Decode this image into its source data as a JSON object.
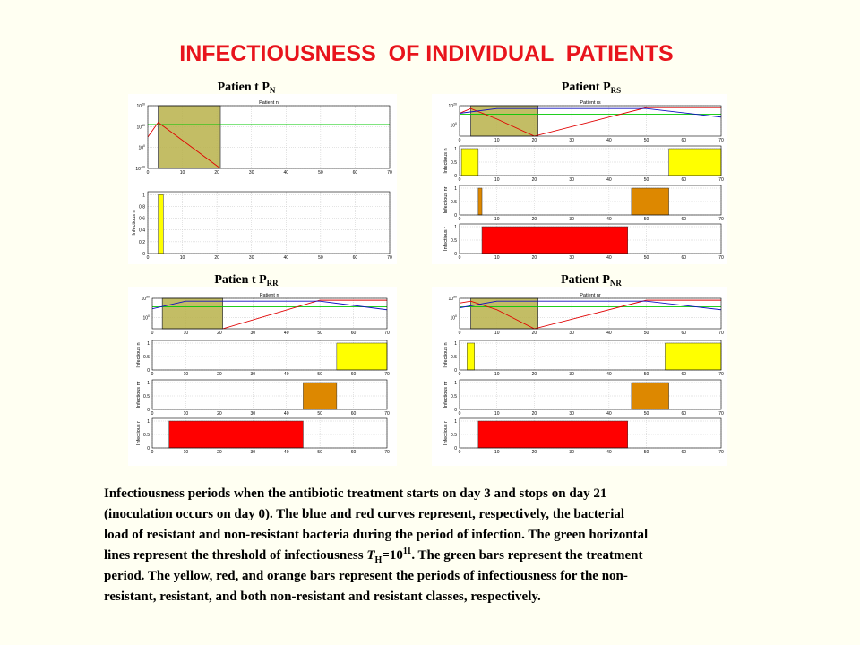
{
  "title": "INFECTIOUSNESS  OF INDIVIDUAL  PATIENTS",
  "caption": {
    "lines": [
      "Infectiousness periods when the antibiotic treatment starts on day 3 and stops on day 21",
      "(inoculation occurs on day 0). The blue and red curves represent, respectively, the bacterial",
      "load of resistant and non-resistant bacteria during the period of infection. The green horizontal"
    ],
    "formula_line": {
      "before": "lines represent the threshold of infectiousness ",
      "symbol": "T",
      "sub": "H",
      "eq": "=10",
      "sup": "11",
      "after": ". The green bars represent the treatment"
    },
    "end_lines": [
      "period. The yellow, red, and orange bars represent the periods of infectiousness for the non-",
      "resistant, resistant, and both non-resistant and resistant classes, respectively."
    ]
  },
  "chart_data": [
    {
      "type": "panel",
      "label": "Patien t P",
      "label_sub": "N",
      "plots": [
        {
          "type": "line",
          "title": "Patient n",
          "log_y": true,
          "grid": true,
          "xlim": [
            0,
            70
          ],
          "xticks": [
            0,
            10,
            20,
            30,
            40,
            50,
            60,
            70
          ],
          "ylim": [
            1e-10,
            1e+20
          ],
          "yticks": [
            {
              "value": 1e-10,
              "label": "10",
              "sup": "-10"
            },
            {
              "value": 1,
              "label": "10",
              "sup": "0"
            },
            {
              "value": 10000000000.0,
              "label": "10",
              "sup": "10"
            },
            {
              "value": 1e+20,
              "label": "10",
              "sup": "20"
            }
          ],
          "treatment": [
            3,
            21
          ],
          "treatment_color": "#b8b24a",
          "threshold": 100000000000.0,
          "threshold_color": "#00c800",
          "series": [
            {
              "color": "#e00000",
              "x": [
                0,
                3,
                21
              ],
              "values": [
                100000.0,
                1000000000000.0,
                1e-10
              ]
            }
          ]
        },
        {
          "type": "interval",
          "ylabel": "Infectious n",
          "grid": true,
          "xlim": [
            0,
            70
          ],
          "xticks": [
            0,
            10,
            20,
            30,
            40,
            50,
            60,
            70
          ],
          "ylim": [
            0,
            1.05
          ],
          "yticks": [
            0,
            0.2,
            0.4,
            0.6,
            0.8,
            1
          ],
          "color": "#ffff00",
          "intervals": [
            [
              3,
              4.5
            ]
          ],
          "values": [
            1
          ]
        }
      ]
    },
    {
      "type": "panel",
      "label": "Patient P",
      "label_sub": "RS",
      "plots": [
        {
          "type": "line",
          "title": "Patient rs",
          "log_y": true,
          "grid": true,
          "xlim": [
            0,
            70
          ],
          "xticks": [
            0,
            10,
            20,
            30,
            40,
            50,
            60,
            70
          ],
          "ylim": [
            1e-12,
            1e+20
          ],
          "yticks": [
            {
              "value": 1,
              "label": "10",
              "sup": "0"
            },
            {
              "value": 1e+20,
              "label": "10",
              "sup": "20"
            }
          ],
          "treatment": [
            3,
            21
          ],
          "treatment_color": "#b8b24a",
          "threshold": 100000000000.0,
          "threshold_color": "#00c800",
          "series": [
            {
              "color": "#e00000",
              "x": [
                0,
                3,
                10,
                20,
                50,
                70
              ],
              "values": [
                1000000000000.0,
                1e+17,
                1000000.0,
                1e-12,
                1e+18,
                1e+18
              ]
            },
            {
              "color": "#1010c0",
              "x": [
                0,
                10,
                50,
                70
              ],
              "values": [
                1000000000000.0,
                1e+17,
                1e+17,
                100000000.0
              ]
            }
          ]
        },
        {
          "type": "interval",
          "ylabel": "Infectious n",
          "grid": true,
          "xlim": [
            0,
            70
          ],
          "xticks": [
            0,
            10,
            20,
            30,
            40,
            50,
            60,
            70
          ],
          "ylim": [
            0,
            1.1
          ],
          "yticks": [
            0,
            0.5,
            1
          ],
          "color": "#ffff00",
          "intervals": [
            [
              0.5,
              5
            ],
            [
              56,
              70
            ]
          ],
          "values": [
            1,
            1
          ]
        },
        {
          "type": "interval",
          "ylabel": "Infectious nr",
          "grid": true,
          "xlim": [
            0,
            70
          ],
          "xticks": [
            0,
            10,
            20,
            30,
            40,
            50,
            60,
            70
          ],
          "ylim": [
            0,
            1.1
          ],
          "yticks": [
            0,
            0.5,
            1
          ],
          "color": "#dd8800",
          "intervals": [
            [
              5,
              6
            ],
            [
              46,
              56
            ]
          ],
          "values": [
            1,
            1
          ]
        },
        {
          "type": "interval",
          "ylabel": "Infectious r",
          "grid": true,
          "xlim": [
            0,
            70
          ],
          "xticks": [
            0,
            10,
            20,
            30,
            40,
            50,
            60,
            70
          ],
          "ylim": [
            0,
            1.1
          ],
          "yticks": [
            0,
            0.5,
            1
          ],
          "color": "#ff0000",
          "intervals": [
            [
              6,
              45
            ]
          ],
          "values": [
            1
          ]
        }
      ]
    },
    {
      "type": "panel",
      "label": "Patien t P",
      "label_sub": "RR",
      "plots": [
        {
          "type": "line",
          "title": "Patient rr",
          "log_y": true,
          "grid": true,
          "xlim": [
            0,
            70
          ],
          "xticks": [
            0,
            10,
            20,
            30,
            40,
            50,
            60,
            70
          ],
          "ylim": [
            1e-12,
            1e+20
          ],
          "yticks": [
            {
              "value": 1,
              "label": "10",
              "sup": "0"
            },
            {
              "value": 1e+20,
              "label": "10",
              "sup": "20"
            }
          ],
          "treatment": [
            3,
            21
          ],
          "treatment_color": "#b8b24a",
          "threshold": 100000000000.0,
          "threshold_color": "#00c800",
          "series": [
            {
              "color": "#e00000",
              "x": [
                21,
                50,
                70
              ],
              "values": [
                1e-12,
                1e+18,
                1e+18
              ]
            },
            {
              "color": "#1010c0",
              "x": [
                0,
                10,
                50,
                70
              ],
              "values": [
                1000000000.0,
                1e+17,
                1e+17,
                100000000.0
              ]
            }
          ]
        },
        {
          "type": "interval",
          "ylabel": "Infectious n",
          "grid": true,
          "xlim": [
            0,
            70
          ],
          "xticks": [
            0,
            10,
            20,
            30,
            40,
            50,
            60,
            70
          ],
          "ylim": [
            0,
            1.1
          ],
          "yticks": [
            0,
            0.5,
            1
          ],
          "color": "#ffff00",
          "intervals": [
            [
              55,
              70
            ]
          ],
          "values": [
            1
          ]
        },
        {
          "type": "interval",
          "ylabel": "Infectious nr",
          "grid": true,
          "xlim": [
            0,
            70
          ],
          "xticks": [
            0,
            10,
            20,
            30,
            40,
            50,
            60,
            70
          ],
          "ylim": [
            0,
            1.1
          ],
          "yticks": [
            0,
            0.5,
            1
          ],
          "color": "#dd8800",
          "intervals": [
            [
              45,
              55
            ]
          ],
          "values": [
            1
          ]
        },
        {
          "type": "interval",
          "ylabel": "Infectious r",
          "grid": true,
          "xlim": [
            0,
            70
          ],
          "xticks": [
            0,
            10,
            20,
            30,
            40,
            50,
            60,
            70
          ],
          "ylim": [
            0,
            1.1
          ],
          "yticks": [
            0,
            0.5,
            1
          ],
          "color": "#ff0000",
          "intervals": [
            [
              5,
              45
            ]
          ],
          "values": [
            1
          ]
        }
      ]
    },
    {
      "type": "panel",
      "label": "Patient P",
      "label_sub": "NR",
      "plots": [
        {
          "type": "line",
          "title": "Patient nr",
          "log_y": true,
          "grid": true,
          "xlim": [
            0,
            70
          ],
          "xticks": [
            0,
            10,
            20,
            30,
            40,
            50,
            60,
            70
          ],
          "ylim": [
            1e-12,
            1e+20
          ],
          "yticks": [
            {
              "value": 1,
              "label": "10",
              "sup": "0"
            },
            {
              "value": 1e+20,
              "label": "10",
              "sup": "20"
            }
          ],
          "treatment": [
            3,
            21
          ],
          "treatment_color": "#b8b24a",
          "threshold": 100000000000.0,
          "threshold_color": "#00c800",
          "series": [
            {
              "color": "#e00000",
              "x": [
                0,
                3,
                10,
                20,
                50,
                70
              ],
              "values": [
                1000000000000000.0,
                1e+17,
                100000000.0,
                1e-12,
                1e+18,
                1e+18
              ]
            },
            {
              "color": "#1010c0",
              "x": [
                0,
                10,
                50,
                70
              ],
              "values": [
                10000000000.0,
                1e+17,
                1e+17,
                100000000.0
              ]
            }
          ]
        },
        {
          "type": "interval",
          "ylabel": "Infectious n",
          "grid": true,
          "xlim": [
            0,
            70
          ],
          "xticks": [
            0,
            10,
            20,
            30,
            40,
            50,
            60,
            70
          ],
          "ylim": [
            0,
            1.1
          ],
          "yticks": [
            0,
            0.5,
            1
          ],
          "color": "#ffff00",
          "intervals": [
            [
              2,
              4
            ],
            [
              55,
              70
            ]
          ],
          "values": [
            1,
            1
          ]
        },
        {
          "type": "interval",
          "ylabel": "Infectious nr",
          "grid": true,
          "xlim": [
            0,
            70
          ],
          "xticks": [
            0,
            10,
            20,
            30,
            40,
            50,
            60,
            70
          ],
          "ylim": [
            0,
            1.1
          ],
          "yticks": [
            0,
            0.5,
            1
          ],
          "color": "#dd8800",
          "intervals": [
            [
              46,
              56
            ]
          ],
          "values": [
            1
          ]
        },
        {
          "type": "interval",
          "ylabel": "Infectious r",
          "grid": true,
          "xlim": [
            0,
            70
          ],
          "xticks": [
            0,
            10,
            20,
            30,
            40,
            50,
            60,
            70
          ],
          "ylim": [
            0,
            1.1
          ],
          "yticks": [
            0,
            0.5,
            1
          ],
          "color": "#ff0000",
          "intervals": [
            [
              5,
              45
            ]
          ],
          "values": [
            1
          ]
        }
      ]
    }
  ]
}
